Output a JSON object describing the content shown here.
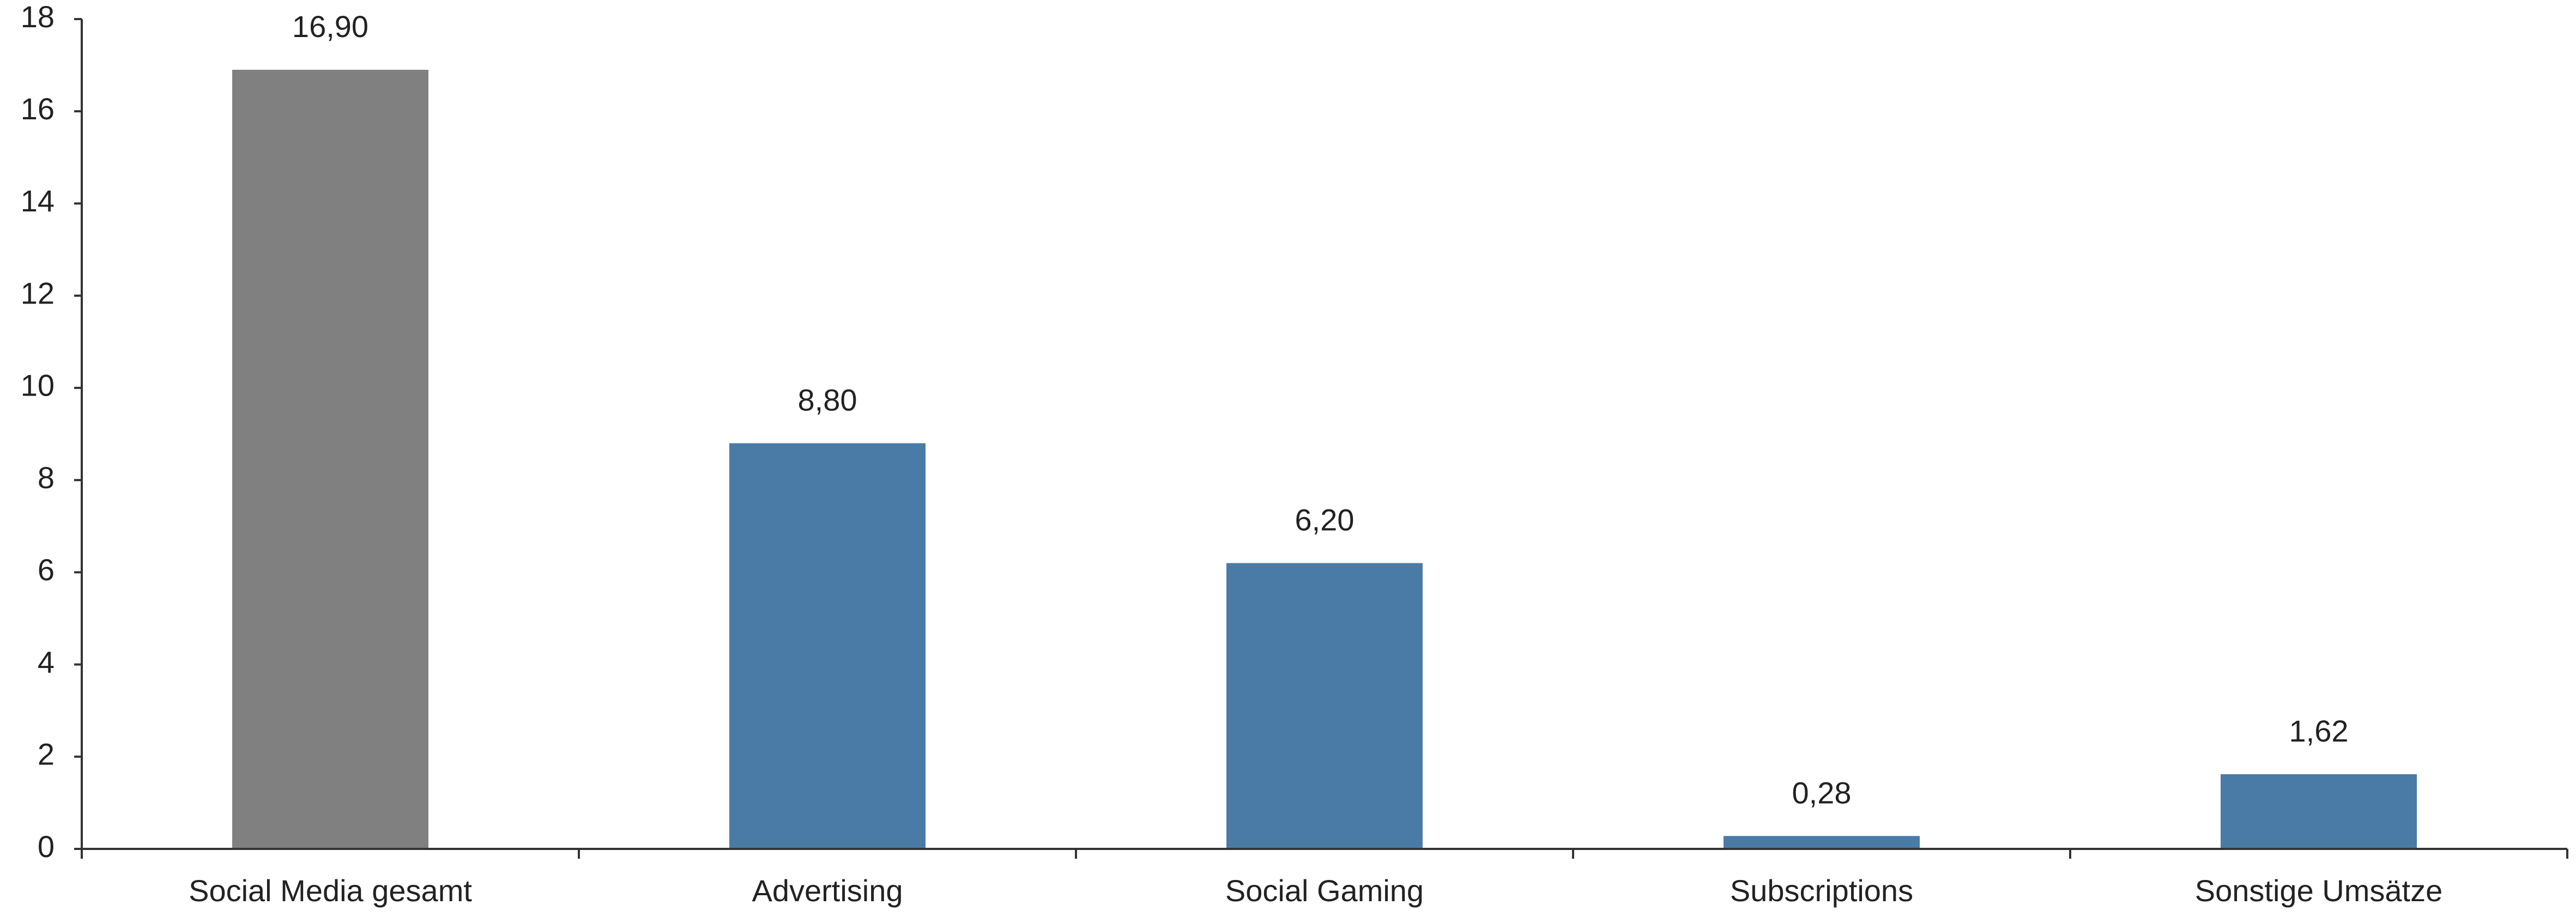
{
  "chart_data": {
    "type": "bar",
    "title": "",
    "xlabel": "",
    "ylabel": "",
    "categories": [
      "Social Media gesamt",
      "Advertising",
      "Social Gaming",
      "Subscriptions",
      "Sonstige Umsätze"
    ],
    "values": [
      16.9,
      8.8,
      6.2,
      0.28,
      1.62
    ],
    "value_labels": [
      "16,90",
      "8,80",
      "6,20",
      "0,28",
      "1,62"
    ],
    "bar_colors": [
      "#808080",
      "#4a7ba6",
      "#4a7ba6",
      "#4a7ba6",
      "#4a7ba6"
    ],
    "ylim": [
      0,
      18
    ],
    "yticks": [
      0,
      2,
      4,
      6,
      8,
      10,
      12,
      14,
      16,
      18
    ],
    "ytick_labels": [
      "0",
      "2",
      "4",
      "6",
      "8",
      "10",
      "12",
      "14",
      "16",
      "18"
    ],
    "grid": false,
    "legend": "none"
  }
}
